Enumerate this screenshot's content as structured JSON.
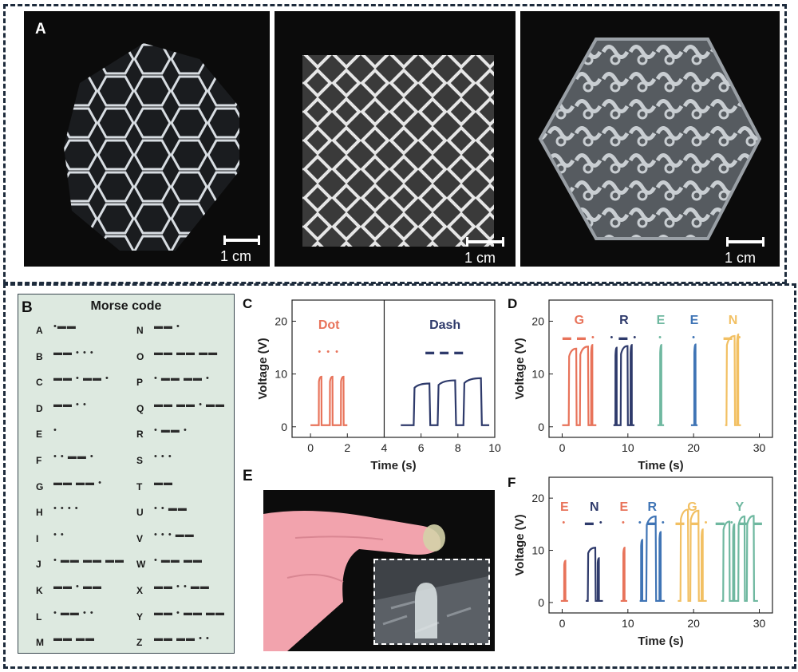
{
  "panels": {
    "a": "A",
    "b": "B",
    "c": "C",
    "d": "D",
    "e": "E",
    "f": "F"
  },
  "scale_label": "1 cm",
  "morse": {
    "title": "Morse code",
    "left": [
      {
        "letter": "A",
        "code": "•▬▬"
      },
      {
        "letter": "B",
        "code": "▬▬ • • •"
      },
      {
        "letter": "C",
        "code": "▬▬ • ▬▬ •"
      },
      {
        "letter": "D",
        "code": "▬▬ • •"
      },
      {
        "letter": "E",
        "code": "•"
      },
      {
        "letter": "F",
        "code": "• • ▬▬ •"
      },
      {
        "letter": "G",
        "code": "▬▬ ▬▬ •"
      },
      {
        "letter": "H",
        "code": "• • • •"
      },
      {
        "letter": "I",
        "code": "• •"
      },
      {
        "letter": "J",
        "code": "• ▬▬ ▬▬ ▬▬"
      },
      {
        "letter": "K",
        "code": "▬▬ • ▬▬"
      },
      {
        "letter": "L",
        "code": "• ▬▬ • •"
      },
      {
        "letter": "M",
        "code": "▬▬ ▬▬"
      }
    ],
    "right": [
      {
        "letter": "N",
        "code": "▬▬ •"
      },
      {
        "letter": "O",
        "code": "▬▬ ▬▬ ▬▬"
      },
      {
        "letter": "P",
        "code": "• ▬▬ ▬▬ •"
      },
      {
        "letter": "Q",
        "code": "▬▬ ▬▬ • ▬▬"
      },
      {
        "letter": "R",
        "code": "• ▬▬ •"
      },
      {
        "letter": "S",
        "code": "• • •"
      },
      {
        "letter": "T",
        "code": "▬▬"
      },
      {
        "letter": "U",
        "code": "• • ▬▬"
      },
      {
        "letter": "V",
        "code": "• • • ▬▬"
      },
      {
        "letter": "W",
        "code": "• ▬▬ ▬▬"
      },
      {
        "letter": "X",
        "code": "▬▬ • • ▬▬"
      },
      {
        "letter": "Y",
        "code": "▬▬ • ▬▬ ▬▬"
      },
      {
        "letter": "Z",
        "code": "▬▬ ▬▬ • •"
      }
    ]
  },
  "colors": {
    "orange": "#e8735a",
    "navy": "#2e3a6b",
    "teal": "#6fb8a0",
    "blue": "#3f74b5",
    "yellow": "#f2c063"
  },
  "chart_data": [
    {
      "panel": "C",
      "type": "line",
      "xlabel": "Time (s)",
      "ylabel": "Voltage (V)",
      "xlim": [
        -1,
        10
      ],
      "ylim": [
        -2,
        24
      ],
      "xticks": [
        0,
        2,
        4,
        6,
        8,
        10
      ],
      "yticks": [
        0,
        10,
        20
      ],
      "divider_x": 4,
      "series": [
        {
          "name": "Dot",
          "symbols": "• • •",
          "color": "#e8735a",
          "pulses": [
            [
              0.45,
              0.6,
              9.5
            ],
            [
              1.05,
              1.2,
              9.5
            ],
            [
              1.65,
              1.8,
              9.5
            ]
          ],
          "x_start": 0,
          "x_end": 2
        },
        {
          "name": "Dash",
          "symbols": "▬ ▬ ▬",
          "color": "#2e3a6b",
          "pulses": [
            [
              5.6,
              6.5,
              8.2
            ],
            [
              6.9,
              7.9,
              8.8
            ],
            [
              8.3,
              9.3,
              9.2
            ]
          ],
          "x_start": 4.9,
          "x_end": 9.7
        }
      ]
    },
    {
      "panel": "D",
      "type": "line",
      "xlabel": "Time (s)",
      "ylabel": "Voltage (V)",
      "xlim": [
        -2,
        32
      ],
      "ylim": [
        -2,
        24
      ],
      "xticks": [
        0,
        10,
        20,
        30
      ],
      "yticks": [
        0,
        10,
        20
      ],
      "series": [
        {
          "name": "G",
          "symbols": "▬ ▬ •",
          "color": "#e8735a",
          "pulses": [
            [
              1.0,
              2.2,
              14.8
            ],
            [
              2.7,
              4.0,
              15.2
            ],
            [
              4.4,
              4.6,
              15.5
            ]
          ],
          "x_start": 0,
          "x_end": 5.2
        },
        {
          "name": "R",
          "symbols": "• ▬ •",
          "color": "#2e3a6b",
          "pulses": [
            [
              8.1,
              8.3,
              15
            ],
            [
              8.9,
              10.0,
              15.3
            ],
            [
              10.4,
              10.6,
              15.5
            ]
          ],
          "x_start": 7.8,
          "x_end": 11
        },
        {
          "name": "E",
          "symbols": "•",
          "color": "#6fb8a0",
          "pulses": [
            [
              14.9,
              15.1,
              15.5
            ]
          ],
          "x_start": 14.5,
          "x_end": 15.5
        },
        {
          "name": "E",
          "symbols": "•",
          "color": "#3f74b5",
          "pulses": [
            [
              20.1,
              20.3,
              15.6
            ]
          ],
          "x_start": 19.6,
          "x_end": 20.6
        },
        {
          "name": "N",
          "symbols": "▬ •",
          "color": "#f2c063",
          "pulses": [
            [
              25.0,
              26.3,
              17.2
            ],
            [
              26.6,
              26.8,
              17.5
            ]
          ],
          "x_start": 24.8,
          "x_end": 27.2
        }
      ]
    },
    {
      "panel": "F",
      "type": "line",
      "xlabel": "Time (s)",
      "ylabel": "Voltage (V)",
      "xlim": [
        -2,
        32
      ],
      "ylim": [
        -2,
        24
      ],
      "xticks": [
        0,
        10,
        20,
        30
      ],
      "yticks": [
        0,
        10,
        20
      ],
      "series": [
        {
          "name": "E",
          "symbols": "•",
          "color": "#e8735a",
          "pulses": [
            [
              0.3,
              0.5,
              8
            ]
          ],
          "x_start": -0.2,
          "x_end": 0.9
        },
        {
          "name": "N",
          "symbols": "▬ •",
          "color": "#2e3a6b",
          "pulses": [
            [
              3.9,
              5.1,
              10.5
            ],
            [
              5.4,
              5.6,
              8.5
            ]
          ],
          "x_start": 3.6,
          "x_end": 6.2
        },
        {
          "name": "E",
          "symbols": "•",
          "color": "#e8735a",
          "pulses": [
            [
              9.3,
              9.5,
              10.5
            ]
          ],
          "x_start": 8.9,
          "x_end": 9.9
        },
        {
          "name": "R",
          "symbols": "• ▬ •",
          "color": "#3f74b5",
          "pulses": [
            [
              12.0,
              12.2,
              12
            ],
            [
              12.8,
              14.3,
              16.5
            ],
            [
              14.8,
              15.0,
              13.5
            ]
          ],
          "x_start": 11.8,
          "x_end": 15.6
        },
        {
          "name": "G",
          "symbols": "▬ ▬ •",
          "color": "#f2c063",
          "pulses": [
            [
              18.0,
              19.2,
              17.8
            ],
            [
              19.5,
              20.8,
              17.6
            ],
            [
              21.2,
              21.4,
              14
            ]
          ],
          "x_start": 17.6,
          "x_end": 22
        },
        {
          "name": "Y",
          "symbols": "▬ • ▬ ▬",
          "color": "#6fb8a0",
          "pulses": [
            [
              24.5,
              25.5,
              15.5
            ],
            [
              26.0,
              26.2,
              15
            ],
            [
              26.8,
              27.8,
              16.5
            ],
            [
              28.1,
              29.2,
              16.6
            ]
          ],
          "x_start": 24.2,
          "x_end": 29.8
        }
      ]
    }
  ]
}
